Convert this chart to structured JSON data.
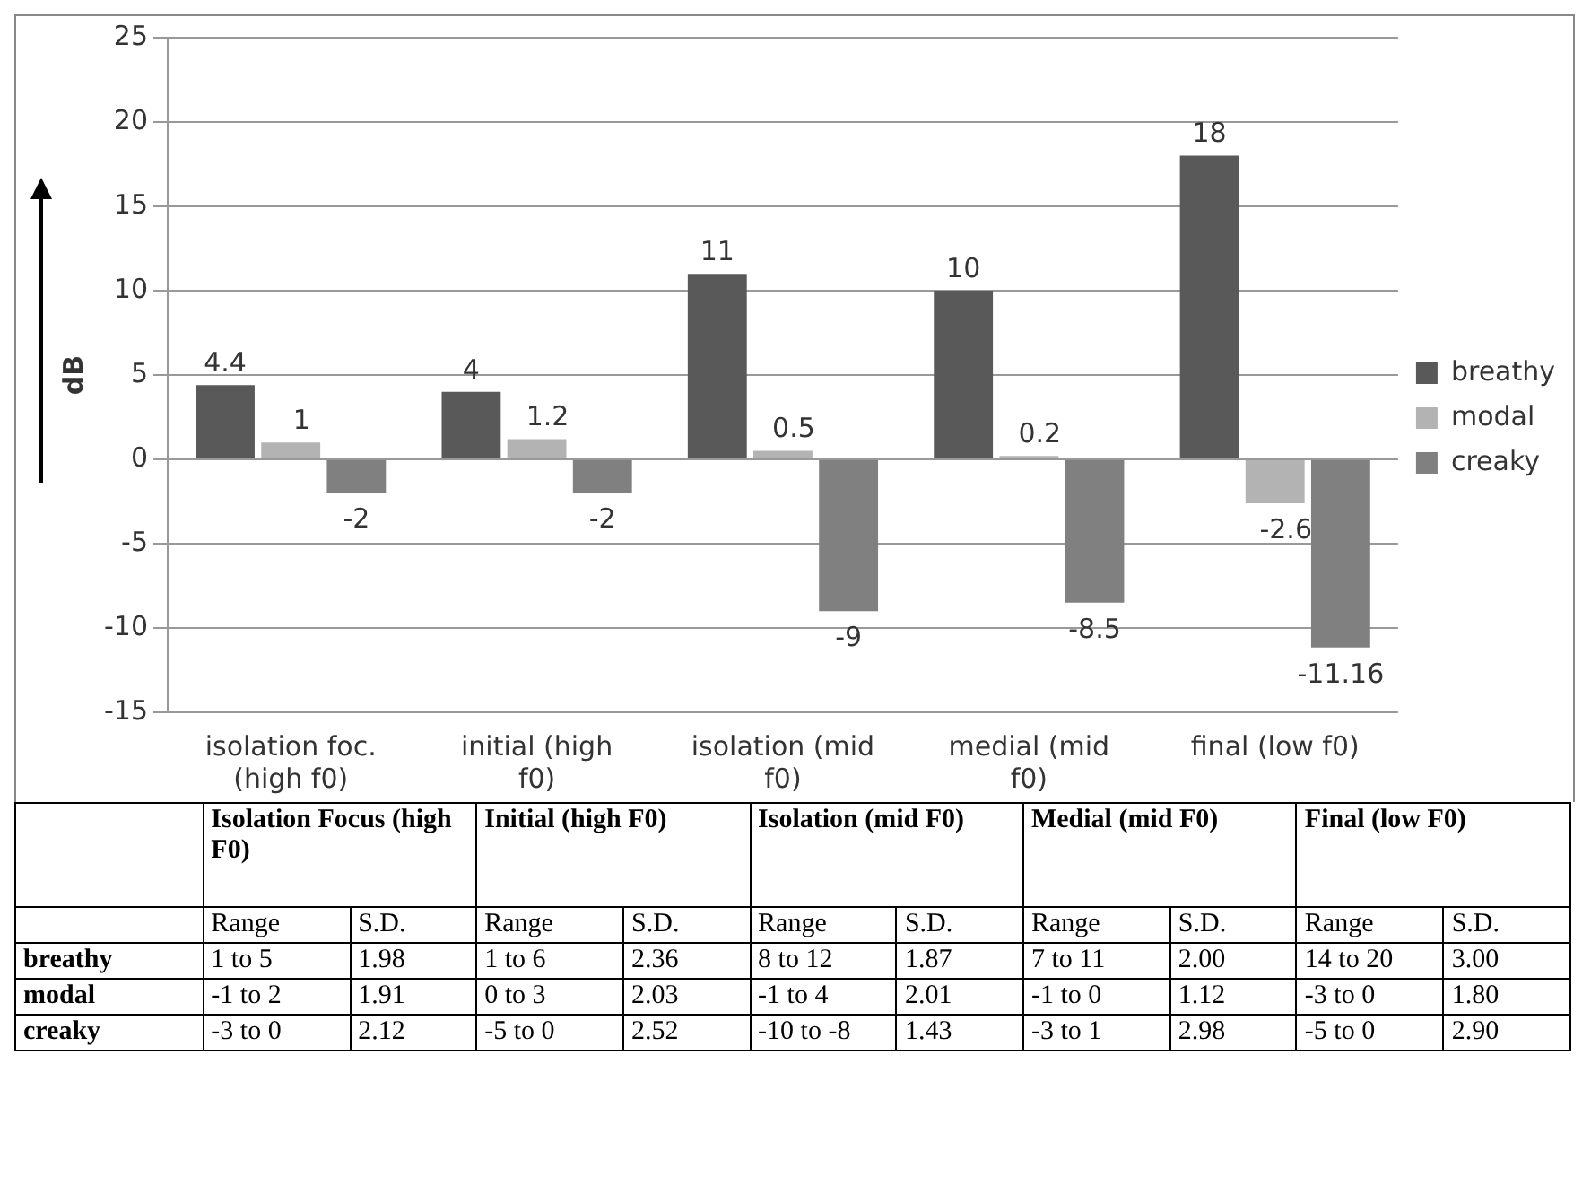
{
  "chart_data": {
    "type": "bar",
    "ylabel": "dB",
    "categories": [
      "isolation foc. (high f0)",
      "initial  (high f0)",
      "isolation (mid f0)",
      "medial (mid f0)",
      "final (low f0)"
    ],
    "series": [
      {
        "name": "breathy",
        "color": "#595959",
        "values": [
          4.4,
          4,
          11,
          10,
          18
        ]
      },
      {
        "name": "modal",
        "color": "#b3b3b3",
        "values": [
          1,
          1.2,
          0.5,
          0.2,
          -2.6
        ]
      },
      {
        "name": "creaky",
        "color": "#808080",
        "values": [
          -2,
          -2,
          -9,
          -8.5,
          -11.16
        ]
      }
    ],
    "ylim": [
      -15,
      25
    ],
    "yticks": [
      -15,
      -10,
      -5,
      0,
      5,
      10,
      15,
      20,
      25
    ],
    "grid": "y",
    "legend": "right",
    "data_labels": true,
    "annotations": [
      "Isolation Focus (high F0)",
      "Initial (high F0)",
      "Isolation (mid F0)",
      "Medial (mid F0)",
      "Final (low F0)",
      "Range",
      "S.D.",
      "Range",
      "S.D.",
      "Range",
      "S.D.",
      "Range",
      "S.D.",
      "Range",
      "S.D.",
      "breathy",
      "1 to 5",
      "1.98",
      "1 to 6",
      "2.36",
      "8 to 12",
      "1.87",
      "7 to 11",
      "2.00",
      "14 to 20",
      "3.00",
      "modal",
      "-1 to 2",
      "1.91",
      "0 to 3",
      "2.03",
      "-1 to 4",
      "2.01",
      "-1 to 0",
      "1.12",
      "-3 to 0",
      "1.80",
      "creaky",
      "-3 to 0",
      "2.12",
      "-5 to 0",
      "2.52",
      "-10 to -8",
      "1.43",
      "-3 to 1",
      "2.98",
      "-5 to 0",
      "2.90"
    ]
  }
}
